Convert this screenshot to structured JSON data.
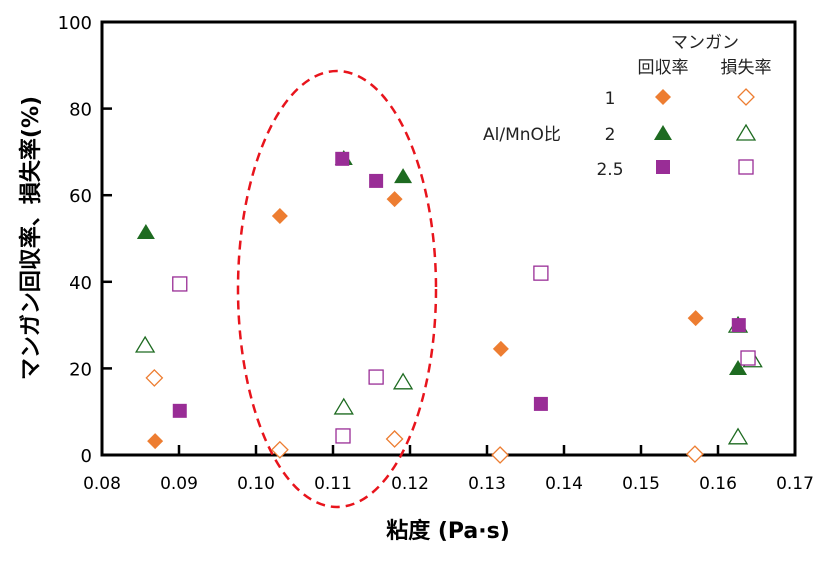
{
  "chart_data": {
    "type": "scatter",
    "xlabel": "粘度 (Pa·s)",
    "ylabel": "マンガン回収率、損失率(%)",
    "xlim": [
      0.08,
      0.17
    ],
    "ylim": [
      0,
      100
    ],
    "xticks": [
      "0.08",
      "0.09",
      "0.10",
      "0.11",
      "0.12",
      "0.13",
      "0.14",
      "0.15",
      "0.16",
      "0.17"
    ],
    "yticks": [
      "0",
      "20",
      "40",
      "60",
      "80",
      "100"
    ],
    "legend": {
      "title_line1": "マンガン",
      "col_recovery": "回収率",
      "col_loss": "損失率",
      "group_label": "Al/MnO比",
      "rows": [
        "1",
        "2",
        "2.5"
      ],
      "placement": "top-right"
    },
    "colors": {
      "r1": "#ED7D31",
      "r2": "#1E6B21",
      "r25": "#992D96",
      "ellipse": "#E8141C"
    },
    "series": [
      {
        "name": "回収率 1",
        "marker": "diamond",
        "filled": true,
        "color": "#ED7D31",
        "points": [
          [
            0.0869,
            3.2
          ],
          [
            0.1031,
            55.2
          ],
          [
            0.118,
            59.1
          ],
          [
            0.1318,
            24.5
          ],
          [
            0.1571,
            31.6
          ]
        ]
      },
      {
        "name": "損失率 1",
        "marker": "diamond",
        "filled": false,
        "color": "#ED7D31",
        "points": [
          [
            0.0868,
            17.8
          ],
          [
            0.1031,
            1.2
          ],
          [
            0.118,
            3.7
          ],
          [
            0.1317,
            0.0
          ],
          [
            0.157,
            0.2
          ]
        ]
      },
      {
        "name": "回収率 2",
        "marker": "triangle",
        "filled": true,
        "color": "#1E6B21",
        "points": [
          [
            0.0857,
            51.5
          ],
          [
            0.1114,
            68.6
          ],
          [
            0.1191,
            64.4
          ],
          [
            0.1626,
            20.1
          ]
        ]
      },
      {
        "name": "損失率 2",
        "marker": "triangle",
        "filled": false,
        "color": "#1E6B21",
        "points": [
          [
            0.0856,
            25.4
          ],
          [
            0.1114,
            11.1
          ],
          [
            0.1191,
            16.9
          ],
          [
            0.1626,
            30.0
          ],
          [
            0.1645,
            22.0
          ],
          [
            0.1626,
            4.2
          ]
        ]
      },
      {
        "name": "回収率 2.5",
        "marker": "square",
        "filled": true,
        "color": "#992D96",
        "points": [
          [
            0.0901,
            10.2
          ],
          [
            0.1112,
            68.4
          ],
          [
            0.1156,
            63.3
          ],
          [
            0.137,
            11.8
          ],
          [
            0.1627,
            30.0
          ]
        ]
      },
      {
        "name": "損失率 2.5",
        "marker": "square",
        "filled": false,
        "color": "#992D96",
        "points": [
          [
            0.0901,
            39.5
          ],
          [
            0.1113,
            4.4
          ],
          [
            0.1156,
            18.0
          ],
          [
            0.137,
            42.0
          ],
          [
            0.1639,
            22.4
          ]
        ]
      }
    ]
  }
}
